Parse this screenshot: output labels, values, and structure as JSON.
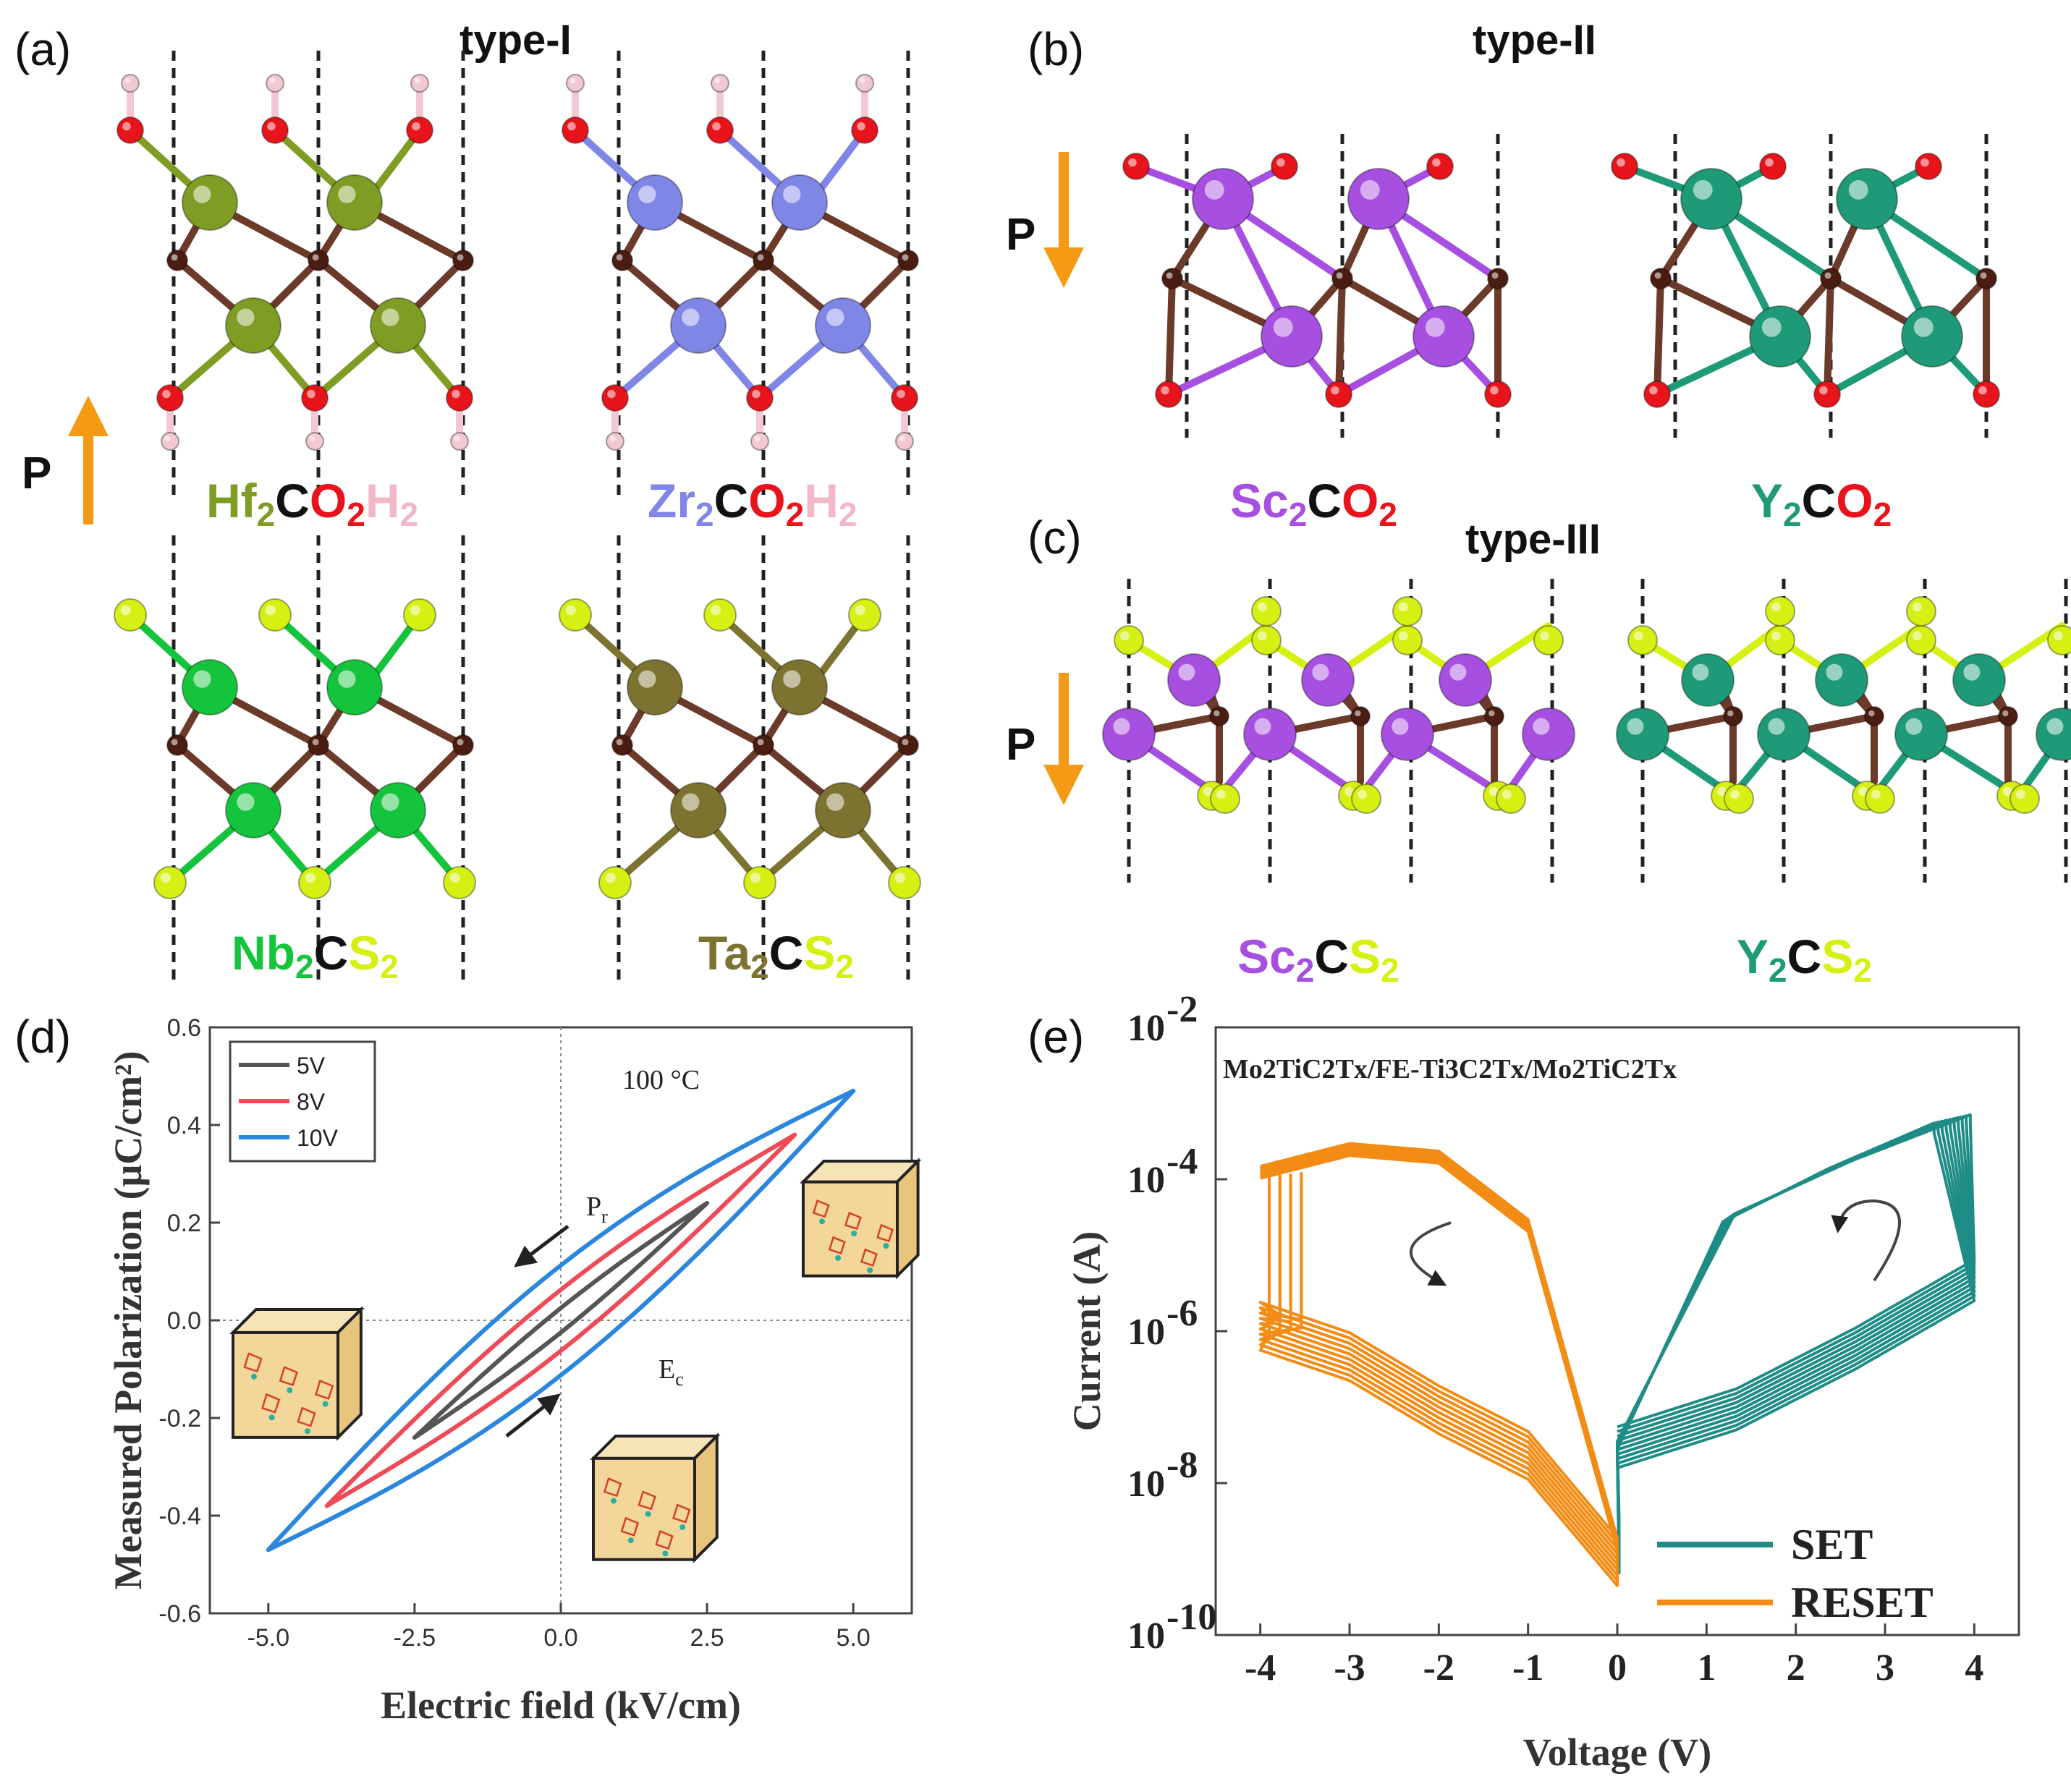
{
  "panel_labels": {
    "a": "(a)",
    "b": "(b)",
    "c": "(c)",
    "d": "(d)",
    "e": "(e)"
  },
  "type_labels": {
    "type1": "type-I",
    "type2": "type-II",
    "type3": "type-III"
  },
  "polarization_label": "P",
  "colors": {
    "hf": "#7f9c24",
    "zr": "#7f86e6",
    "nb": "#14c43c",
    "ta": "#7d7330",
    "sc": "#a64fe0",
    "y": "#1e9a78",
    "sulfur": "#d6f014",
    "oxygen": "#e8141c",
    "hydrogen": "#f2c8d2",
    "carbon": "#4a1c12",
    "arrow": "#f59a14",
    "set": "#1f8c86",
    "reset": "#f28c14",
    "loop5": "#555555",
    "loop8": "#ee4b57",
    "loop10": "#2b86de"
  },
  "formulas": {
    "hf2co2h2": {
      "m": "Hf",
      "s1": "2",
      "c": "C",
      "x": "O",
      "s2": "2",
      "h": "H",
      "s3": "2"
    },
    "zr2co2h2": {
      "m": "Zr",
      "s1": "2",
      "c": "C",
      "x": "O",
      "s2": "2",
      "h": "H",
      "s3": "2"
    },
    "nb2cs2": {
      "m": "Nb",
      "s1": "2",
      "c": "C",
      "x": "S",
      "s2": "2"
    },
    "ta2cs2": {
      "m": "Ta",
      "s1": "2",
      "c": "C",
      "x": "S",
      "s2": "2"
    },
    "sc2co2": {
      "m": "Sc",
      "s1": "2",
      "c": "C",
      "x": "O",
      "s2": "2"
    },
    "y2co2": {
      "m": "Y",
      "s1": "2",
      "c": "C",
      "x": "O",
      "s2": "2"
    },
    "sc2cs2": {
      "m": "Sc",
      "s1": "2",
      "c": "C",
      "x": "S",
      "s2": "2"
    },
    "y2cs2": {
      "m": "Y",
      "s1": "2",
      "c": "C",
      "x": "S",
      "s2": "2"
    }
  },
  "panel_d": {
    "chart_data": {
      "type": "line",
      "title": "",
      "annotation": "100 °C",
      "xlabel": "Electric field (kV/cm)",
      "ylabel": "Measured Polarization (μC/cm²)",
      "xlim": [
        -6.0,
        6.0
      ],
      "ylim": [
        -0.6,
        0.6
      ],
      "xticks": [
        "-5.0",
        "-2.5",
        "0.0",
        "2.5",
        "5.0"
      ],
      "yticks": [
        "-0.6",
        "-0.4",
        "-0.2",
        "0.0",
        "0.2",
        "0.4",
        "0.6"
      ],
      "series": [
        {
          "name": "5V",
          "emax": 2.5,
          "pmax": 0.24,
          "intercept": 0.02
        },
        {
          "name": "8V",
          "emax": 4.0,
          "pmax": 0.38,
          "intercept": 0.05
        },
        {
          "name": "10V",
          "emax": 5.0,
          "pmax": 0.47,
          "intercept": 0.09
        }
      ],
      "labels": {
        "pr": "P",
        "pr_sub": "r",
        "ec": "E",
        "ec_sub": "c"
      }
    }
  },
  "panel_e": {
    "chart_data": {
      "type": "line",
      "title": "Mo2TiC2Tx/FE-Ti3C2Tx/Mo2TiC2Tx",
      "xlabel": "Voltage (V)",
      "ylabel": "Current (A)",
      "xlim": [
        -4.5,
        4.5
      ],
      "ylim_log10": [
        -10,
        -2
      ],
      "xticks": [
        "-4",
        "-3",
        "-2",
        "-1",
        "0",
        "1",
        "2",
        "3",
        "4"
      ],
      "ytick_exponents": [
        "-2",
        "-4",
        "-6",
        "-8",
        "-10"
      ],
      "ytick_base": "10",
      "series": [
        {
          "name": "SET",
          "range": [
            0,
            4
          ],
          "high_log10": [
            -7.5,
            -4.5,
            -3.8,
            -3.2
          ],
          "low_log10": [
            -7.5,
            -7.0,
            -6.2,
            -5.3
          ]
        },
        {
          "name": "RESET",
          "range": [
            -4,
            0
          ],
          "high_log10": [
            -3.9,
            -3.6,
            -3.7,
            -4.6,
            -8.8
          ],
          "low_log10": [
            -5.9,
            -6.3,
            -7.0,
            -7.6,
            -9.0
          ]
        }
      ],
      "legend": [
        "SET",
        "RESET"
      ]
    }
  }
}
